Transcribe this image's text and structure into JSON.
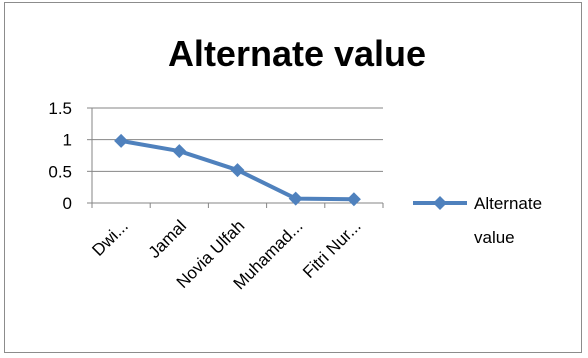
{
  "chart_data": {
    "type": "line",
    "title": "Alternate value",
    "xlabel": "",
    "ylabel": "",
    "categories": [
      "Dwi...",
      "Jamal",
      "Novia Ulfah",
      "Muhamad...",
      "Fitri Nur..."
    ],
    "series": [
      {
        "name": "Alternate value",
        "values": [
          0.98,
          0.82,
          0.52,
          0.07,
          0.06
        ]
      }
    ],
    "ylim": [
      0,
      1.5
    ],
    "yticks": [
      "0",
      "0.5",
      "1",
      "1.5"
    ],
    "grid": true,
    "legend_position": "right",
    "legend_label_lines": [
      "Alternate",
      "value"
    ],
    "colors": {
      "series": "#4f81bd",
      "grid": "#868686",
      "axis": "#868686",
      "frame": "#8c8c8c"
    }
  }
}
